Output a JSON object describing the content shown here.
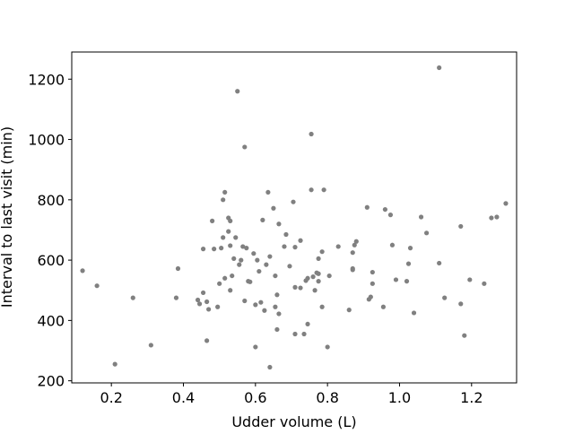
{
  "chart_data": {
    "type": "scatter",
    "title": "",
    "xlabel": "Udder volume (L)",
    "ylabel": "Interval to last visit (min)",
    "xlim": [
      0.09,
      1.325
    ],
    "ylim": [
      193,
      1290
    ],
    "xticks": [
      0.2,
      0.4,
      0.6,
      0.8,
      1.0,
      1.2
    ],
    "xtick_labels": [
      "0.2",
      "0.4",
      "0.6",
      "0.8",
      "1.0",
      "1.2"
    ],
    "yticks": [
      200,
      400,
      600,
      800,
      1000,
      1200
    ],
    "ytick_labels": [
      "200",
      "400",
      "600",
      "800",
      "1000",
      "1200"
    ],
    "grid": false,
    "marker_color": "#808080",
    "points": [
      [
        0.12,
        565
      ],
      [
        0.16,
        515
      ],
      [
        0.21,
        255
      ],
      [
        0.26,
        475
      ],
      [
        0.31,
        318
      ],
      [
        0.38,
        475
      ],
      [
        0.385,
        572
      ],
      [
        0.44,
        468
      ],
      [
        0.445,
        455
      ],
      [
        0.455,
        492
      ],
      [
        0.455,
        637
      ],
      [
        0.465,
        462
      ],
      [
        0.465,
        333
      ],
      [
        0.47,
        437
      ],
      [
        0.48,
        730
      ],
      [
        0.485,
        637
      ],
      [
        0.495,
        445
      ],
      [
        0.5,
        522
      ],
      [
        0.505,
        640
      ],
      [
        0.51,
        800
      ],
      [
        0.51,
        675
      ],
      [
        0.515,
        825
      ],
      [
        0.515,
        540
      ],
      [
        0.525,
        740
      ],
      [
        0.525,
        695
      ],
      [
        0.53,
        730
      ],
      [
        0.53,
        648
      ],
      [
        0.53,
        500
      ],
      [
        0.535,
        548
      ],
      [
        0.54,
        605
      ],
      [
        0.545,
        675
      ],
      [
        0.55,
        1160
      ],
      [
        0.555,
        585
      ],
      [
        0.56,
        600
      ],
      [
        0.565,
        645
      ],
      [
        0.57,
        975
      ],
      [
        0.57,
        465
      ],
      [
        0.575,
        640
      ],
      [
        0.58,
        530
      ],
      [
        0.585,
        528
      ],
      [
        0.595,
        622
      ],
      [
        0.6,
        452
      ],
      [
        0.6,
        312
      ],
      [
        0.605,
        600
      ],
      [
        0.61,
        563
      ],
      [
        0.615,
        460
      ],
      [
        0.62,
        733
      ],
      [
        0.625,
        433
      ],
      [
        0.63,
        585
      ],
      [
        0.635,
        825
      ],
      [
        0.64,
        612
      ],
      [
        0.64,
        245
      ],
      [
        0.65,
        772
      ],
      [
        0.655,
        548
      ],
      [
        0.655,
        445
      ],
      [
        0.66,
        370
      ],
      [
        0.66,
        485
      ],
      [
        0.665,
        720
      ],
      [
        0.665,
        422
      ],
      [
        0.68,
        645
      ],
      [
        0.685,
        685
      ],
      [
        0.695,
        580
      ],
      [
        0.705,
        793
      ],
      [
        0.71,
        643
      ],
      [
        0.71,
        510
      ],
      [
        0.71,
        355
      ],
      [
        0.725,
        665
      ],
      [
        0.725,
        508
      ],
      [
        0.735,
        355
      ],
      [
        0.74,
        532
      ],
      [
        0.745,
        540
      ],
      [
        0.745,
        388
      ],
      [
        0.755,
        1018
      ],
      [
        0.755,
        833
      ],
      [
        0.76,
        545
      ],
      [
        0.765,
        500
      ],
      [
        0.77,
        558
      ],
      [
        0.775,
        555
      ],
      [
        0.775,
        530
      ],
      [
        0.775,
        605
      ],
      [
        0.785,
        628
      ],
      [
        0.785,
        445
      ],
      [
        0.79,
        833
      ],
      [
        0.8,
        312
      ],
      [
        0.805,
        548
      ],
      [
        0.83,
        645
      ],
      [
        0.86,
        435
      ],
      [
        0.87,
        568
      ],
      [
        0.87,
        572
      ],
      [
        0.87,
        625
      ],
      [
        0.875,
        650
      ],
      [
        0.88,
        662
      ],
      [
        0.91,
        775
      ],
      [
        0.915,
        470
      ],
      [
        0.92,
        478
      ],
      [
        0.925,
        560
      ],
      [
        0.925,
        522
      ],
      [
        0.955,
        445
      ],
      [
        0.96,
        768
      ],
      [
        0.975,
        750
      ],
      [
        0.98,
        650
      ],
      [
        0.99,
        535
      ],
      [
        1.02,
        530
      ],
      [
        1.025,
        588
      ],
      [
        1.03,
        640
      ],
      [
        1.04,
        425
      ],
      [
        1.06,
        743
      ],
      [
        1.075,
        690
      ],
      [
        1.11,
        1238
      ],
      [
        1.11,
        590
      ],
      [
        1.125,
        475
      ],
      [
        1.17,
        712
      ],
      [
        1.17,
        455
      ],
      [
        1.18,
        350
      ],
      [
        1.195,
        535
      ],
      [
        1.235,
        522
      ],
      [
        1.255,
        740
      ],
      [
        1.27,
        743
      ],
      [
        1.295,
        788
      ]
    ]
  }
}
